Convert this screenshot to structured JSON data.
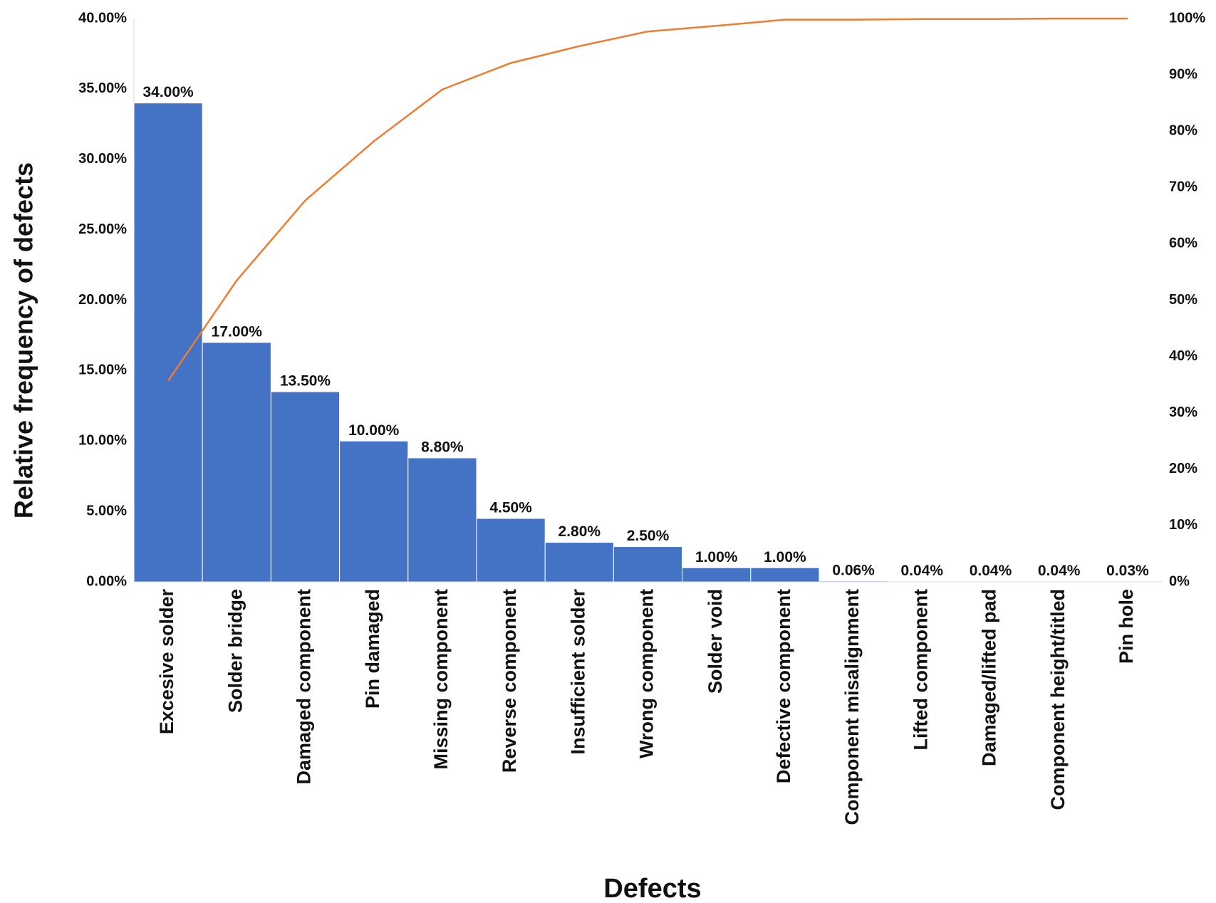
{
  "chart_data": {
    "type": "pareto",
    "x_label": "Defects",
    "y_label": "Relative frequency of defects",
    "categories": [
      "Excesive solder",
      "Solder bridge",
      "Damaged component",
      "Pin damaged",
      "Missing component",
      "Reverse component",
      "Insufficient solder",
      "Wrong component",
      "Solder void",
      "Defective component",
      "Component misalignment",
      "Lifted component",
      "Damaged/lifted pad",
      "Component height/titled",
      "Pin hole"
    ],
    "series": [
      {
        "type": "bar",
        "color": "#4472c4",
        "values": [
          34,
          17,
          13.5,
          10,
          8.8,
          4.5,
          2.8,
          2.5,
          1,
          1,
          0.06,
          0.04,
          0.04,
          0.04,
          0.03
        ],
        "value_labels": [
          "34.00%",
          "17.00%",
          "13.50%",
          "10.00%",
          "8.80%",
          "4.50%",
          "2.80%",
          "2.50%",
          "1.00%",
          "1.00%",
          "0.06%",
          "0.04%",
          "0.04%",
          "0.04%",
          "0.03%"
        ]
      },
      {
        "type": "line",
        "axis": "y2",
        "color": "#ed7d31",
        "values": [
          35.7,
          53.5,
          67.7,
          78.2,
          87.4,
          92.1,
          95.1,
          97.7,
          98.7,
          99.8,
          99.8,
          99.9,
          99.9,
          100,
          100
        ]
      }
    ],
    "ylim": [
      0,
      40
    ],
    "yticks": [
      {
        "value": 0,
        "label": "0.00%"
      },
      {
        "value": 5,
        "label": "5.00%"
      },
      {
        "value": 10,
        "label": "10.00%"
      },
      {
        "value": 15,
        "label": "15.00%"
      },
      {
        "value": 20,
        "label": "20.00%"
      },
      {
        "value": 25,
        "label": "25.00%"
      },
      {
        "value": 30,
        "label": "30.00%"
      },
      {
        "value": 35,
        "label": "35.00%"
      },
      {
        "value": 40,
        "label": "40.00%"
      }
    ],
    "y2lim": [
      0,
      100
    ],
    "y2ticks": [
      {
        "value": 0,
        "label": "0%"
      },
      {
        "value": 10,
        "label": "10%"
      },
      {
        "value": 20,
        "label": "20%"
      },
      {
        "value": 30,
        "label": "30%"
      },
      {
        "value": 40,
        "label": "40%"
      },
      {
        "value": 50,
        "label": "50%"
      },
      {
        "value": 60,
        "label": "60%"
      },
      {
        "value": 70,
        "label": "70%"
      },
      {
        "value": 80,
        "label": "80%"
      },
      {
        "value": 90,
        "label": "90%"
      },
      {
        "value": 100,
        "label": "100%"
      }
    ],
    "grid": false
  }
}
